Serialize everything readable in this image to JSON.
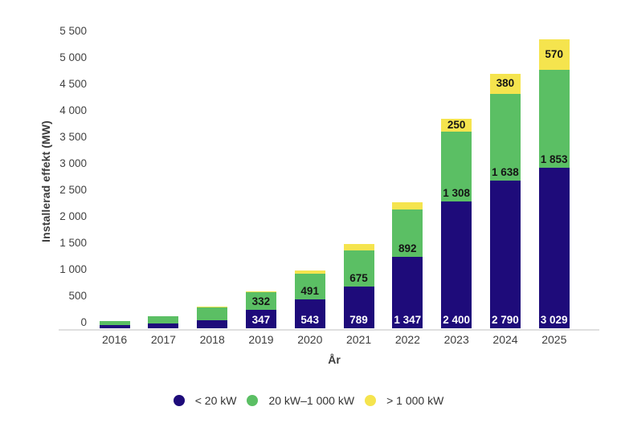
{
  "chart_data": {
    "type": "bar",
    "stacked": true,
    "title": "",
    "xlabel": "År",
    "ylabel": "Installerad effekt (MW)",
    "ylim": [
      0,
      5500
    ],
    "grid": false,
    "legend_position": "bottom",
    "yticks": [
      {
        "value": 0,
        "label": "0"
      },
      {
        "value": 500,
        "label": "500"
      },
      {
        "value": 1000,
        "label": "1 000"
      },
      {
        "value": 1500,
        "label": "1 500"
      },
      {
        "value": 2000,
        "label": "2 000"
      },
      {
        "value": 2500,
        "label": "2 500"
      },
      {
        "value": 3000,
        "label": "3 000"
      },
      {
        "value": 3500,
        "label": "3 500"
      },
      {
        "value": 4000,
        "label": "4 000"
      },
      {
        "value": 4500,
        "label": "4 500"
      },
      {
        "value": 5000,
        "label": "5 000"
      },
      {
        "value": 5500,
        "label": "5 500"
      }
    ],
    "categories": [
      "2016",
      "2017",
      "2018",
      "2019",
      "2020",
      "2021",
      "2022",
      "2023",
      "2024",
      "2025"
    ],
    "series": [
      {
        "name": "< 20 kW",
        "color": "#1e0b7a",
        "label_color": "#ffffff",
        "label_pos": "bottom",
        "values": [
          65,
          90,
          155,
          347,
          543,
          789,
          1347,
          2400,
          2790,
          3029
        ],
        "labels": [
          "",
          "",
          "",
          "347",
          "543",
          "789",
          "1 347",
          "2 400",
          "2 790",
          "3 029"
        ]
      },
      {
        "name": "20 kW–1 000 kW",
        "color": "#5bbf64",
        "label_color": "#151515",
        "label_pos": "bottom",
        "values": [
          70,
          140,
          245,
          332,
          491,
          675,
          892,
          1308,
          1638,
          1853
        ],
        "labels": [
          "",
          "",
          "",
          "332",
          "491",
          "675",
          "892",
          "1 308",
          "1 638",
          "1 853"
        ]
      },
      {
        "name": "> 1 000 kW",
        "color": "#f5e44e",
        "label_color": "#151515",
        "label_pos": "center",
        "values": [
          0,
          0,
          10,
          20,
          55,
          120,
          145,
          250,
          380,
          570
        ],
        "labels": [
          "",
          "",
          "",
          "",
          "",
          "",
          "",
          "250",
          "380",
          "570"
        ]
      }
    ]
  }
}
